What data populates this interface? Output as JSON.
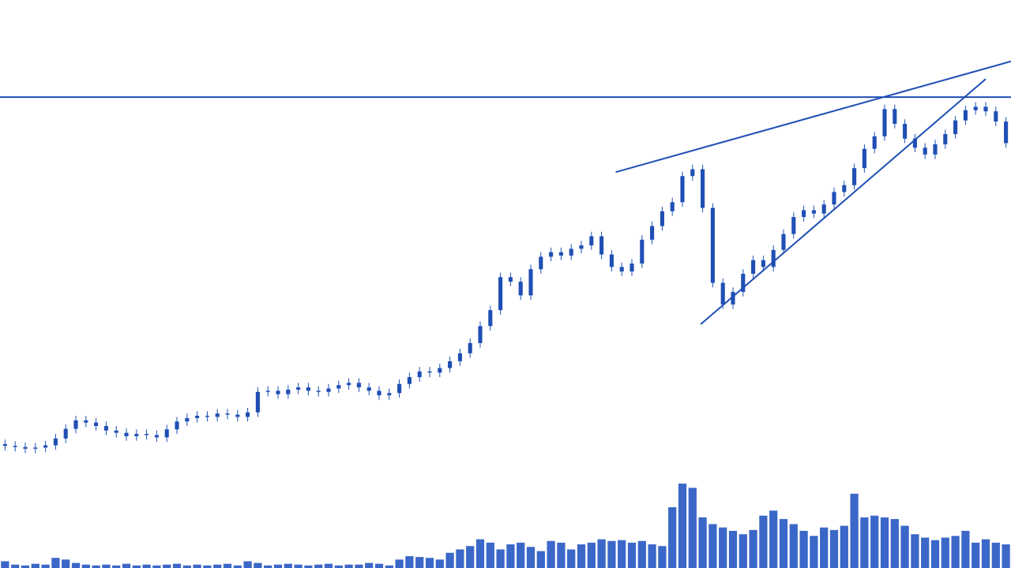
{
  "chart_data": {
    "type": "candlestick",
    "color": "#1f4fb4",
    "volume_color": "#3b67c8",
    "xlim": [
      -0.5,
      99.5
    ],
    "ylim": [
      0,
      100
    ],
    "volume_ylim": [
      0,
      100
    ],
    "open": [
      21.8,
      21.5,
      21.3,
      21.0,
      21.2,
      21.6,
      22.8,
      24.5,
      26.0,
      25.6,
      25.0,
      24.2,
      23.8,
      23.2,
      23.6,
      23.4,
      23.0,
      24.4,
      25.8,
      26.4,
      26.8,
      26.6,
      27.2,
      27.0,
      26.6,
      27.4,
      31.0,
      31.2,
      30.6,
      31.4,
      31.8,
      31.2,
      31.0,
      31.6,
      32.2,
      32.6,
      31.8,
      31.2,
      30.4,
      30.8,
      32.4,
      33.6,
      34.6,
      34.4,
      35.2,
      36.4,
      37.8,
      39.6,
      42.6,
      45.4,
      51.2,
      50.4,
      48.0,
      52.6,
      54.8,
      55.6,
      55.0,
      56.2,
      56.8,
      58.4,
      55.2,
      53.0,
      52.2,
      53.6,
      57.8,
      60.2,
      62.8,
      64.4,
      69.0,
      70.2,
      63.4,
      50.2,
      46.4,
      48.6,
      51.8,
      54.2,
      53.0,
      56.0,
      58.8,
      61.8,
      63.0,
      62.4,
      64.0,
      66.2,
      67.4,
      70.4,
      73.8,
      76.0,
      80.8,
      78.2,
      75.6,
      74.0,
      72.8,
      74.6,
      76.4,
      78.8,
      80.6,
      81.2,
      80.4,
      78.6
    ],
    "high": [
      22.6,
      22.3,
      22.1,
      22.0,
      22.4,
      23.6,
      25.3,
      26.8,
      26.8,
      26.4,
      25.8,
      25.0,
      24.6,
      24.4,
      24.4,
      24.2,
      25.2,
      26.6,
      27.2,
      27.6,
      27.6,
      28.0,
      28.0,
      27.8,
      28.2,
      31.8,
      32.0,
      32.0,
      32.2,
      32.6,
      32.6,
      32.0,
      32.4,
      33.0,
      33.4,
      33.4,
      32.6,
      32.0,
      31.6,
      33.2,
      34.4,
      35.4,
      35.4,
      36.0,
      37.2,
      38.6,
      40.4,
      43.4,
      46.2,
      52.0,
      52.0,
      51.2,
      53.4,
      55.6,
      56.4,
      56.4,
      57.0,
      57.6,
      59.2,
      59.2,
      56.0,
      53.8,
      54.4,
      58.6,
      61.0,
      63.6,
      65.2,
      69.8,
      71.0,
      71.0,
      64.2,
      51.0,
      49.4,
      52.6,
      55.0,
      55.0,
      56.8,
      59.6,
      62.6,
      63.8,
      63.8,
      64.8,
      67.0,
      68.2,
      71.2,
      74.6,
      76.8,
      81.6,
      81.6,
      79.0,
      76.4,
      74.8,
      75.4,
      77.2,
      79.6,
      81.4,
      82.0,
      82.0,
      81.2,
      79.4
    ],
    "low": [
      20.7,
      20.5,
      20.2,
      20.2,
      20.4,
      20.8,
      22.0,
      23.7,
      24.8,
      24.2,
      23.4,
      23.0,
      22.4,
      22.4,
      22.6,
      22.2,
      22.2,
      23.6,
      25.0,
      25.6,
      25.8,
      25.8,
      26.2,
      25.8,
      25.8,
      26.6,
      30.2,
      29.8,
      29.8,
      30.6,
      30.4,
      30.2,
      30.2,
      30.8,
      31.4,
      31.0,
      30.4,
      29.6,
      29.6,
      30.0,
      31.6,
      32.8,
      33.6,
      33.6,
      34.4,
      35.6,
      37.0,
      38.8,
      41.8,
      44.6,
      49.6,
      47.2,
      47.2,
      51.8,
      54.0,
      54.2,
      54.2,
      55.4,
      56.0,
      54.4,
      52.2,
      51.4,
      51.4,
      52.8,
      57.0,
      59.4,
      62.0,
      63.6,
      68.2,
      62.6,
      49.4,
      45.6,
      45.6,
      47.8,
      51.0,
      52.2,
      52.2,
      55.2,
      58.0,
      61.0,
      61.6,
      61.6,
      63.2,
      65.4,
      66.6,
      69.6,
      73.0,
      75.2,
      77.4,
      74.8,
      73.2,
      72.0,
      72.0,
      73.8,
      75.6,
      78.0,
      79.8,
      79.6,
      77.8,
      74.0
    ],
    "close": [
      21.5,
      21.3,
      21.0,
      21.2,
      21.6,
      22.8,
      24.5,
      26.0,
      25.6,
      25.0,
      24.2,
      23.8,
      23.2,
      23.6,
      23.4,
      23.0,
      24.4,
      25.8,
      26.4,
      26.8,
      26.6,
      27.2,
      27.0,
      26.6,
      27.4,
      31.0,
      31.2,
      30.6,
      31.4,
      31.8,
      31.2,
      31.0,
      31.6,
      32.2,
      32.6,
      31.8,
      31.2,
      30.4,
      30.8,
      32.4,
      33.6,
      34.6,
      34.4,
      35.2,
      36.4,
      37.8,
      39.6,
      42.6,
      45.4,
      51.2,
      50.4,
      48.0,
      52.6,
      54.8,
      55.6,
      55.0,
      56.2,
      56.8,
      58.4,
      55.2,
      53.0,
      52.2,
      53.6,
      57.8,
      60.2,
      62.8,
      64.4,
      69.0,
      70.2,
      63.4,
      50.2,
      46.4,
      48.6,
      51.8,
      54.2,
      53.0,
      56.0,
      58.8,
      61.8,
      63.0,
      62.4,
      64.0,
      66.2,
      67.4,
      70.4,
      73.8,
      76.0,
      80.8,
      78.2,
      75.6,
      74.0,
      72.8,
      74.6,
      76.4,
      78.8,
      80.6,
      81.2,
      80.4,
      78.6,
      74.8
    ],
    "volume": [
      8,
      4,
      3,
      5,
      4,
      12,
      10,
      6,
      4,
      3,
      4,
      3,
      5,
      3,
      4,
      3,
      4,
      5,
      3,
      4,
      3,
      4,
      5,
      3,
      8,
      6,
      3,
      4,
      5,
      4,
      3,
      4,
      5,
      3,
      4,
      4,
      6,
      5,
      3,
      10,
      14,
      13,
      12,
      10,
      18,
      22,
      26,
      34,
      30,
      22,
      28,
      30,
      25,
      20,
      32,
      30,
      22,
      28,
      30,
      34,
      32,
      33,
      30,
      32,
      28,
      26,
      72,
      100,
      95,
      60,
      52,
      48,
      44,
      40,
      45,
      62,
      68,
      58,
      52,
      44,
      38,
      48,
      45,
      50,
      88,
      60,
      62,
      60,
      58,
      50,
      40,
      36,
      33,
      36,
      38,
      44,
      30,
      34,
      30,
      28
    ],
    "hline": 82.9,
    "trendlines": [
      {
        "x": [
          60.4,
          99.5
        ],
        "y": [
          69.7,
          89.2
        ]
      },
      {
        "x": [
          68.8,
          97.0
        ],
        "y": [
          42.9,
          86.1
        ]
      }
    ]
  }
}
